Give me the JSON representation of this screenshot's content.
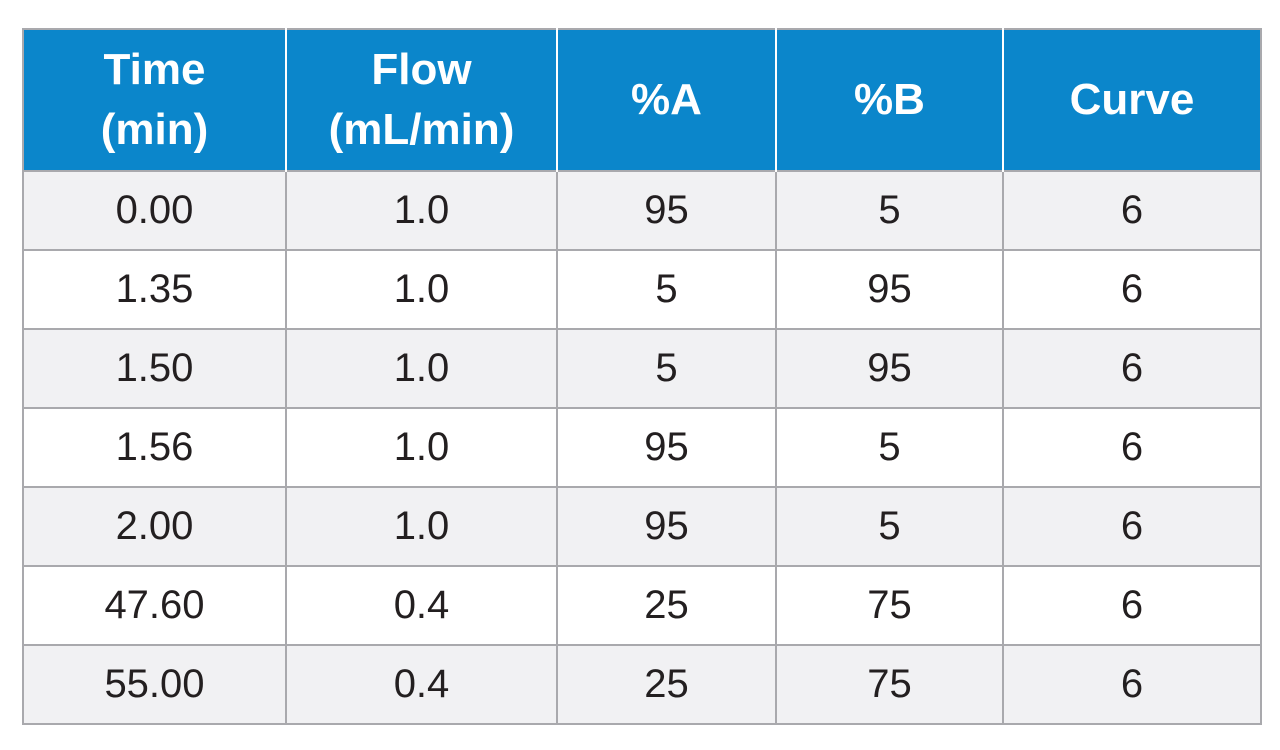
{
  "table": {
    "headers": [
      [
        "Time",
        "(min)"
      ],
      [
        "Flow",
        "(mL/min)"
      ],
      [
        "%A"
      ],
      [
        "%B"
      ],
      [
        "Curve"
      ]
    ],
    "rows": [
      [
        "0.00",
        "1.0",
        "95",
        "5",
        "6"
      ],
      [
        "1.35",
        "1.0",
        "5",
        "95",
        "6"
      ],
      [
        "1.50",
        "1.0",
        "5",
        "95",
        "6"
      ],
      [
        "1.56",
        "1.0",
        "95",
        "5",
        "6"
      ],
      [
        "2.00",
        "1.0",
        "95",
        "5",
        "6"
      ],
      [
        "47.60",
        "0.4",
        "25",
        "75",
        "6"
      ],
      [
        "55.00",
        "0.4",
        "25",
        "75",
        "6"
      ]
    ]
  },
  "colors": {
    "header_bg": "#0b86cb",
    "header_text": "#ffffff",
    "row_alt_bg": "#f1f1f3",
    "row_bg": "#ffffff",
    "border": "#a9a9ad",
    "cell_text": "#231f20"
  }
}
